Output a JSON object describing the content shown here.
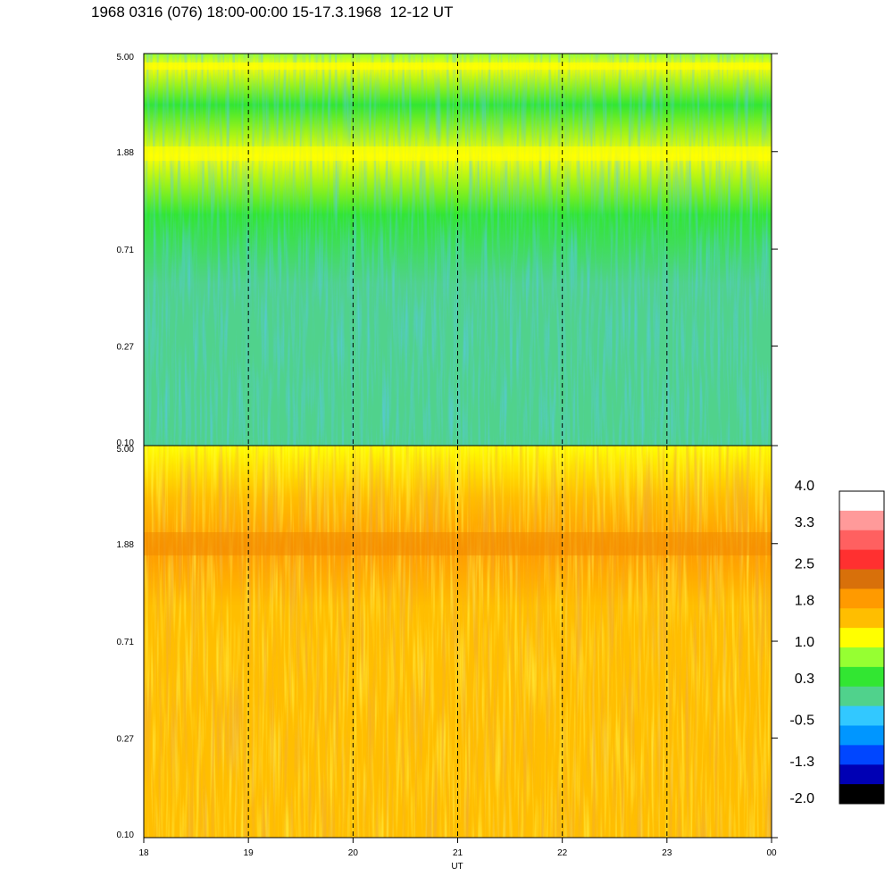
{
  "title": "1968 0316 (076) 18:00-00:00 15-17.3.1968  12-12 UT",
  "chart_data": [
    {
      "type": "heatmap",
      "panel": "top",
      "x_ticks": [
        "18",
        "19",
        "20",
        "21",
        "22",
        "23",
        "00"
      ],
      "y_ticks": [
        "5.00",
        "1.88",
        "0.71",
        "0.27",
        "0.10"
      ],
      "y_scale": "log",
      "ylim": [
        0.1,
        5.0
      ],
      "x_range_hours": [
        18,
        24
      ],
      "dashed_vertical_lines_at": [
        19,
        20,
        21,
        22,
        23
      ],
      "bright_bands_y": [
        4.4,
        1.8
      ],
      "level_profile": [
        {
          "y": 5.0,
          "value": 1.0
        },
        {
          "y": 4.4,
          "value": 1.2
        },
        {
          "y": 3.0,
          "value": 0.5
        },
        {
          "y": 1.8,
          "value": 1.2
        },
        {
          "y": 1.0,
          "value": 0.6
        },
        {
          "y": 0.5,
          "value": 0.2
        },
        {
          "y": 0.27,
          "value": 0.1
        },
        {
          "y": 0.1,
          "value": 0.0
        }
      ]
    },
    {
      "type": "heatmap",
      "panel": "bottom",
      "x_ticks": [
        "18",
        "19",
        "20",
        "21",
        "22",
        "23",
        "00"
      ],
      "y_ticks": [
        "5.00",
        "1.88",
        "0.71",
        "0.27",
        "0.10"
      ],
      "y_scale": "log",
      "ylim": [
        0.1,
        5.0
      ],
      "x_range_hours": [
        18,
        24
      ],
      "xlabel": "UT",
      "dashed_vertical_lines_at": [
        19,
        20,
        21,
        22,
        23
      ],
      "bright_bands_y": [
        1.8
      ],
      "level_profile": [
        {
          "y": 5.0,
          "value": 1.1
        },
        {
          "y": 3.0,
          "value": 1.6
        },
        {
          "y": 1.8,
          "value": 1.9
        },
        {
          "y": 1.0,
          "value": 1.4
        },
        {
          "y": 0.5,
          "value": 1.5
        },
        {
          "y": 0.27,
          "value": 1.6
        },
        {
          "y": 0.1,
          "value": 1.5
        }
      ]
    }
  ],
  "colorbar": {
    "labels": [
      "4.0",
      "3.3",
      "2.5",
      "1.8",
      "1.0",
      "0.3",
      "-0.5",
      "-1.3",
      "-2.0"
    ],
    "range": [
      -2.0,
      4.0
    ],
    "colors_top_to_bottom": [
      "#ffffff",
      "#ff9a9a",
      "#ff6060",
      "#ff3030",
      "#d8700a",
      "#ff9a00",
      "#ffbe00",
      "#ffff00",
      "#96ff32",
      "#32e632",
      "#50d28c",
      "#32c8ff",
      "#0096ff",
      "#0046ff",
      "#0000b4",
      "#000000"
    ]
  }
}
